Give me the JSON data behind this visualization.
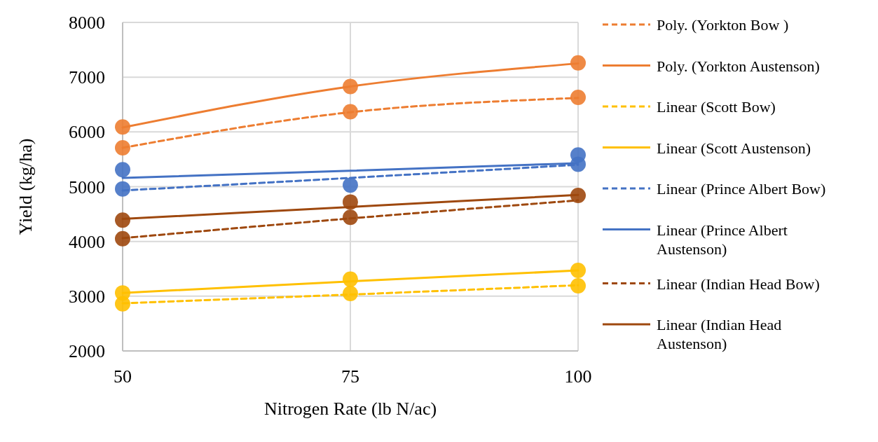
{
  "chart_data": {
    "type": "line",
    "xlabel": "Nitrogen Rate (lb N/ac)",
    "ylabel": "Yield (kg/ha)",
    "x": [
      50,
      75,
      100
    ],
    "xlim": [
      50,
      100
    ],
    "xticks": [
      50,
      75,
      100
    ],
    "ylim": [
      2000,
      8000
    ],
    "yticks": [
      2000,
      3000,
      4000,
      5000,
      6000,
      7000,
      8000
    ],
    "grid": true,
    "legend": "right",
    "series": [
      {
        "type": "scatter",
        "color": "#ed7d31",
        "marker": "circle",
        "values": [
          5710,
          6370,
          6630
        ]
      },
      {
        "type": "scatter",
        "color": "#ed7d31",
        "marker": "circle",
        "values": [
          6090,
          6830,
          7260
        ]
      },
      {
        "type": "scatter",
        "color": "#ffc000",
        "marker": "circle",
        "values": [
          2860,
          3050,
          3190
        ]
      },
      {
        "type": "scatter",
        "color": "#ffc000",
        "marker": "circle",
        "values": [
          3060,
          3310,
          3470
        ]
      },
      {
        "type": "scatter",
        "color": "#4472c4",
        "marker": "circle",
        "values": [
          4960,
          null,
          5410
        ]
      },
      {
        "type": "scatter",
        "color": "#4472c4",
        "marker": "circle",
        "values": [
          5310,
          5030,
          5580
        ]
      },
      {
        "type": "scatter",
        "color": "#9e480e",
        "marker": "circle",
        "values": [
          4050,
          4440,
          null
        ]
      },
      {
        "type": "scatter",
        "color": "#9e480e",
        "marker": "circle",
        "values": [
          4390,
          4720,
          4840
        ]
      },
      {
        "name": "Poly. (Yorkton Bow )",
        "color": "#ed7d31",
        "line_style": "dashed",
        "values": [
          5710,
          6360,
          6620
        ]
      },
      {
        "name": "Poly. (Yorkton Austenson)",
        "color": "#ed7d31",
        "line_style": "solid",
        "values": [
          6080,
          6830,
          7250
        ]
      },
      {
        "name": "Linear (Scott Bow)",
        "color": "#ffc000",
        "line_style": "dashed",
        "values": [
          2870,
          3030,
          3200
        ]
      },
      {
        "name": "Linear (Scott Austenson)",
        "color": "#ffc000",
        "line_style": "solid",
        "values": [
          3060,
          3270,
          3470
        ]
      },
      {
        "name": "Linear (Prince Albert Bow)",
        "color": "#4472c4",
        "line_style": "dashed",
        "values": [
          4930,
          5160,
          5400
        ]
      },
      {
        "name": "Linear (Prince Albert Austenson)",
        "color": "#4472c4",
        "line_style": "solid",
        "values": [
          5160,
          5290,
          5430
        ]
      },
      {
        "name": "Linear (Indian Head Bow)",
        "color": "#9e480e",
        "line_style": "dashed",
        "values": [
          4060,
          4420,
          4750
        ]
      },
      {
        "name": "Linear (Indian Head Austenson)",
        "color": "#9e480e",
        "line_style": "solid",
        "values": [
          4410,
          4630,
          4850
        ]
      }
    ]
  }
}
